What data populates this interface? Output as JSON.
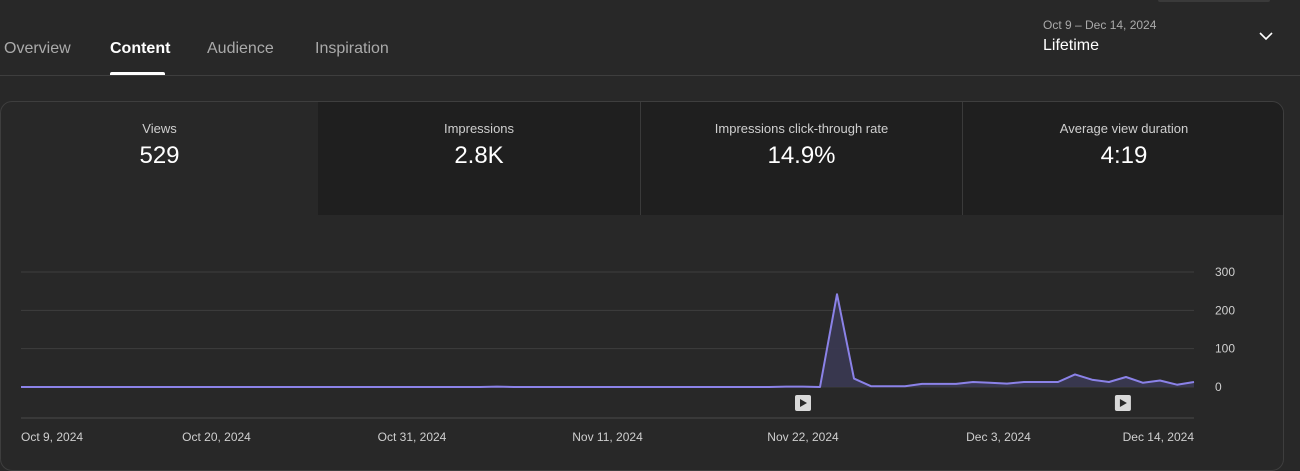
{
  "tabs": [
    {
      "label": "Overview",
      "active": false
    },
    {
      "label": "Content",
      "active": true
    },
    {
      "label": "Audience",
      "active": false
    },
    {
      "label": "Inspiration",
      "active": false
    }
  ],
  "date_range": {
    "range_label": "Oct 9 – Dec 14, 2024",
    "period": "Lifetime",
    "icon": "chevron-down-icon"
  },
  "metrics": [
    {
      "label": "Views",
      "value": "529",
      "selected": true
    },
    {
      "label": "Impressions",
      "value": "2.8K",
      "selected": false
    },
    {
      "label": "Impressions click-through rate",
      "value": "14.9%",
      "selected": false
    },
    {
      "label": "Average view duration",
      "value": "4:19",
      "selected": false
    }
  ],
  "colors": {
    "background": "#282828",
    "line": "#8b82e8",
    "area": "#3a3852",
    "grid": "#3e3e3e",
    "text_muted": "#aaaaaa"
  },
  "chart_data": {
    "type": "area",
    "title": "",
    "xlabel": "",
    "ylabel": "",
    "x_range": [
      "Oct 9, 2024",
      "Dec 14, 2024"
    ],
    "ylim": [
      0,
      300
    ],
    "y_ticks": [
      "0",
      "100",
      "200",
      "300"
    ],
    "x_tick_labels": [
      "Oct 9, 2024",
      "Oct 20, 2024",
      "Oct 31, 2024",
      "Nov 11, 2024",
      "Nov 22, 2024",
      "Dec 3, 2024",
      "Dec 14, 2024"
    ],
    "grid": true,
    "series": [
      {
        "values": [
          0,
          0,
          0,
          0,
          0,
          0,
          0,
          0,
          0,
          0,
          0,
          0,
          0,
          0,
          0,
          0,
          0,
          0,
          0,
          0,
          0,
          0,
          0,
          0,
          0,
          0,
          0,
          0,
          1,
          0,
          0,
          0,
          0,
          0,
          0,
          0,
          0,
          0,
          0,
          0,
          0,
          0,
          0,
          0,
          0,
          1,
          1,
          0,
          242,
          22,
          2,
          2,
          2,
          8,
          8,
          8,
          13,
          11,
          9,
          13,
          13,
          13,
          33,
          19,
          13,
          26,
          11,
          17,
          6,
          13
        ]
      }
    ],
    "markers": [
      {
        "date": "Nov 22, 2024",
        "icon": "play-icon"
      },
      {
        "date": "Dec 10, 2024",
        "icon": "play-icon"
      }
    ]
  }
}
